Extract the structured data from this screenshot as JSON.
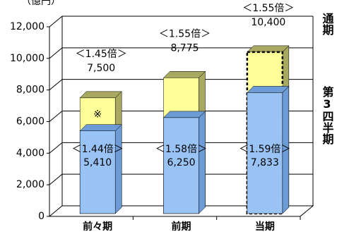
{
  "chart_data": {
    "type": "overlap-bar3d",
    "unit": "（億円）",
    "categories": [
      "前々期",
      "前期",
      "当期"
    ],
    "ylim": [
      0,
      12000
    ],
    "yticks": [
      0,
      {
        "value": 2000,
        "label": "2,000"
      },
      {
        "value": 4000,
        "label": "4,000"
      },
      {
        "value": 6000,
        "label": "6,000"
      },
      {
        "value": 8000,
        "label": "8,000"
      },
      {
        "value": 10000,
        "label": "10,000"
      },
      {
        "value": 12000,
        "label": "12,000"
      }
    ],
    "grid": true,
    "series": [
      {
        "name": "通期",
        "color": "#ffff99",
        "side": "#a8a860",
        "values": [
          7500,
          8775,
          10400
        ],
        "value_labels": [
          "7,500",
          "8,775",
          "10,400"
        ],
        "ratios": [
          "＜1.45倍＞",
          "＜1.55倍＞",
          "＜1.55倍＞"
        ],
        "dashed": [
          false,
          false,
          true
        ]
      },
      {
        "name": "第3四半期",
        "color": "#99c2f5",
        "side": "#6c9bd6",
        "values": [
          5410,
          6250,
          7833
        ],
        "value_labels": [
          "5,410",
          "6,250",
          "7,833"
        ],
        "ratios": [
          "＜1.44倍＞",
          "＜1.58倍＞",
          "＜1.59倍＞"
        ],
        "dashed": [
          false,
          false,
          false
        ]
      }
    ],
    "annotations": [
      {
        "text": "※",
        "bar": 0
      }
    ]
  }
}
